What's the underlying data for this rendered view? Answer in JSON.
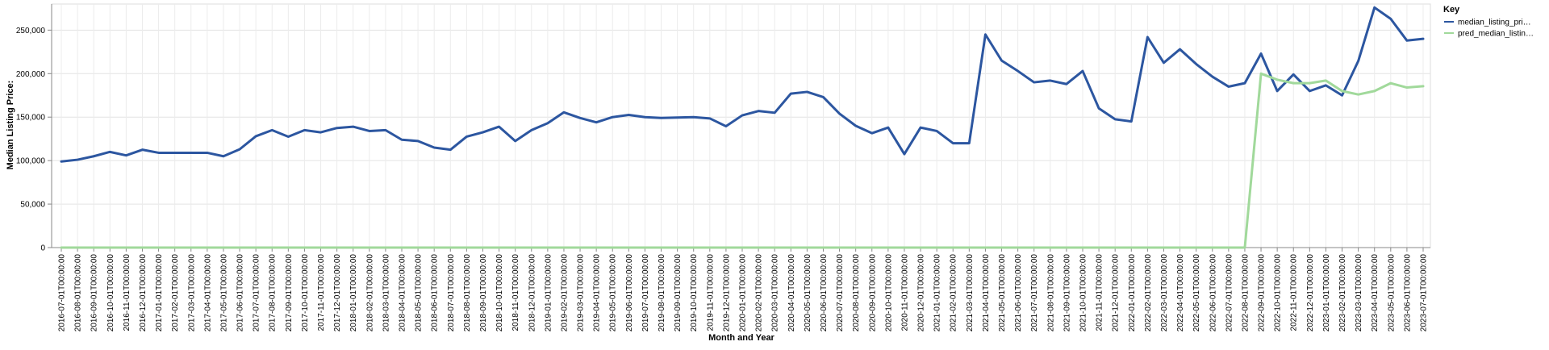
{
  "chart_data": {
    "type": "line",
    "xlabel": "Month and Year",
    "ylabel": "Median Listing Price:",
    "ylim": [
      0,
      280000
    ],
    "yticks": [
      0,
      50000,
      100000,
      150000,
      200000,
      250000
    ],
    "ytick_labels": [
      "0",
      "50,000",
      "100,000",
      "150,000",
      "200,000",
      "250,000"
    ],
    "grid": true,
    "legend": {
      "title": "Key",
      "position": "right",
      "entries": [
        "median_listing_pri…",
        "pred_median_listin…"
      ]
    },
    "x": [
      "2016-07-01T00:00:00",
      "2016-08-01T00:00:00",
      "2016-09-01T00:00:00",
      "2016-10-01T00:00:00",
      "2016-11-01T00:00:00",
      "2016-12-01T00:00:00",
      "2017-01-01T00:00:00",
      "2017-02-01T00:00:00",
      "2017-03-01T00:00:00",
      "2017-04-01T00:00:00",
      "2017-05-01T00:00:00",
      "2017-06-01T00:00:00",
      "2017-07-01T00:00:00",
      "2017-08-01T00:00:00",
      "2017-09-01T00:00:00",
      "2017-10-01T00:00:00",
      "2017-11-01T00:00:00",
      "2017-12-01T00:00:00",
      "2018-01-01T00:00:00",
      "2018-02-01T00:00:00",
      "2018-03-01T00:00:00",
      "2018-04-01T00:00:00",
      "2018-05-01T00:00:00",
      "2018-06-01T00:00:00",
      "2018-07-01T00:00:00",
      "2018-08-01T00:00:00",
      "2018-09-01T00:00:00",
      "2018-10-01T00:00:00",
      "2018-11-01T00:00:00",
      "2018-12-01T00:00:00",
      "2019-01-01T00:00:00",
      "2019-02-01T00:00:00",
      "2019-03-01T00:00:00",
      "2019-04-01T00:00:00",
      "2019-05-01T00:00:00",
      "2019-06-01T00:00:00",
      "2019-07-01T00:00:00",
      "2019-08-01T00:00:00",
      "2019-09-01T00:00:00",
      "2019-10-01T00:00:00",
      "2019-11-01T00:00:00",
      "2019-12-01T00:00:00",
      "2020-01-01T00:00:00",
      "2020-02-01T00:00:00",
      "2020-03-01T00:00:00",
      "2020-04-01T00:00:00",
      "2020-05-01T00:00:00",
      "2020-06-01T00:00:00",
      "2020-07-01T00:00:00",
      "2020-08-01T00:00:00",
      "2020-09-01T00:00:00",
      "2020-10-01T00:00:00",
      "2020-11-01T00:00:00",
      "2020-12-01T00:00:00",
      "2021-01-01T00:00:00",
      "2021-02-01T00:00:00",
      "2021-03-01T00:00:00",
      "2021-04-01T00:00:00",
      "2021-05-01T00:00:00",
      "2021-06-01T00:00:00",
      "2021-07-01T00:00:00",
      "2021-08-01T00:00:00",
      "2021-09-01T00:00:00",
      "2021-10-01T00:00:00",
      "2021-11-01T00:00:00",
      "2021-12-01T00:00:00",
      "2022-01-01T00:00:00",
      "2022-02-01T00:00:00",
      "2022-03-01T00:00:00",
      "2022-04-01T00:00:00",
      "2022-05-01T00:00:00",
      "2022-06-01T00:00:00",
      "2022-07-01T00:00:00",
      "2022-08-01T00:00:00",
      "2022-09-01T00:00:00",
      "2022-10-01T00:00:00",
      "2022-11-01T00:00:00",
      "2022-12-01T00:00:00",
      "2023-01-01T00:00:00",
      "2023-02-01T00:00:00",
      "2023-03-01T00:00:00",
      "2023-04-01T00:00:00",
      "2023-05-01T00:00:00",
      "2023-06-01T00:00:00",
      "2023-07-01T00:00:00"
    ],
    "series": [
      {
        "name": "median_listing_pri…",
        "color": "#2c56a0",
        "values": [
          99000,
          101000,
          105000,
          110000,
          106000,
          112500,
          109000,
          109000,
          109000,
          109000,
          105000,
          113000,
          128000,
          135000,
          127500,
          135000,
          132500,
          137500,
          139000,
          134000,
          135000,
          124000,
          122500,
          115000,
          112500,
          127500,
          132500,
          139000,
          122500,
          135000,
          143000,
          155500,
          149000,
          144000,
          150000,
          152500,
          150000,
          149000,
          149500,
          150000,
          148500,
          139500,
          152000,
          157000,
          155000,
          177000,
          179000,
          173000,
          154000,
          140000,
          131500,
          138000,
          107500,
          138000,
          134000,
          120000,
          120000,
          245000,
          215000,
          203000,
          190000,
          192000,
          188000,
          203000,
          160000,
          147500,
          145000,
          242000,
          212500,
          228000,
          211000,
          196500,
          185000,
          189000,
          223000,
          180000,
          199000,
          180000,
          186500,
          175000,
          214500,
          276000,
          263000,
          238000,
          240000
        ]
      },
      {
        "name": "pred_median_listin…",
        "color": "#a1d99b",
        "values": [
          0,
          0,
          0,
          0,
          0,
          0,
          0,
          0,
          0,
          0,
          0,
          0,
          0,
          0,
          0,
          0,
          0,
          0,
          0,
          0,
          0,
          0,
          0,
          0,
          0,
          0,
          0,
          0,
          0,
          0,
          0,
          0,
          0,
          0,
          0,
          0,
          0,
          0,
          0,
          0,
          0,
          0,
          0,
          0,
          0,
          0,
          0,
          0,
          0,
          0,
          0,
          0,
          0,
          0,
          0,
          0,
          0,
          0,
          0,
          0,
          0,
          0,
          0,
          0,
          0,
          0,
          0,
          0,
          0,
          0,
          0,
          0,
          0,
          0,
          200000,
          193000,
          189000,
          189000,
          192000,
          180000,
          176000,
          180000,
          189000,
          184000,
          185500
        ]
      }
    ]
  }
}
